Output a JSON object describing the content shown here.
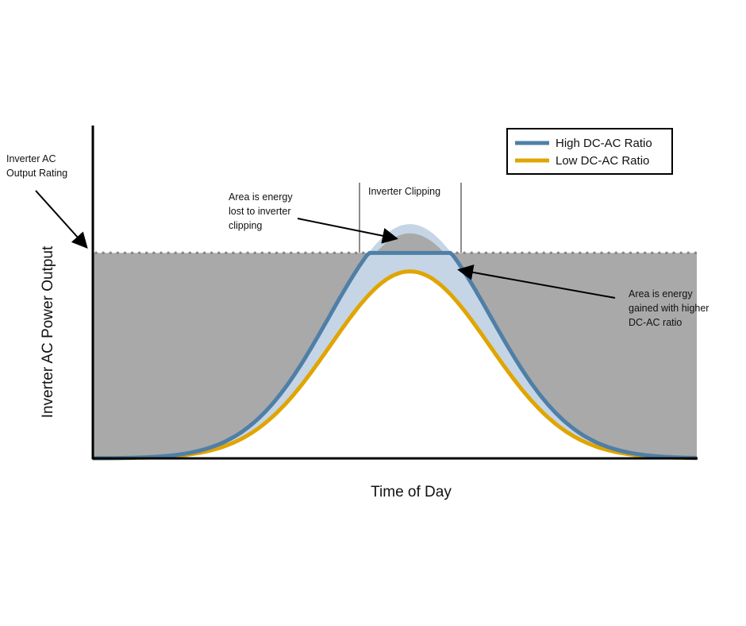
{
  "chart_data": {
    "type": "area",
    "title": "",
    "xlabel": "Time of Day",
    "ylabel": "Inverter AC Power Output",
    "xlim": [
      0,
      24
    ],
    "ylim": [
      0,
      1.62
    ],
    "inverter_rating": 1.0,
    "series": [
      {
        "name": "High DC-AC Ratio",
        "peak": 1.14,
        "center": 12.6,
        "sigma": 3.2,
        "clipped_at": 1.0,
        "color": "#4f7fa6"
      },
      {
        "name": "Low DC-AC Ratio",
        "peak": 0.91,
        "center": 12.6,
        "sigma": 3.15,
        "color": "#e0a500"
      }
    ],
    "legend": {
      "placement": "top-right",
      "entries": [
        "High DC-AC Ratio",
        "Low DC-AC Ratio"
      ]
    },
    "annotations": {
      "rating": [
        "Inverter AC",
        "Output Rating"
      ],
      "clipping": "Inverter Clipping",
      "lost": [
        "Area is energy",
        "lost to inverter",
        "clipping"
      ],
      "gained": [
        "Area is energy",
        "gained with higher",
        "DC-AC ratio"
      ]
    },
    "colors": {
      "gain_fill": "#c5d5e6",
      "lost_fill": "#a9a9a9",
      "rating_line": "#888888"
    }
  }
}
